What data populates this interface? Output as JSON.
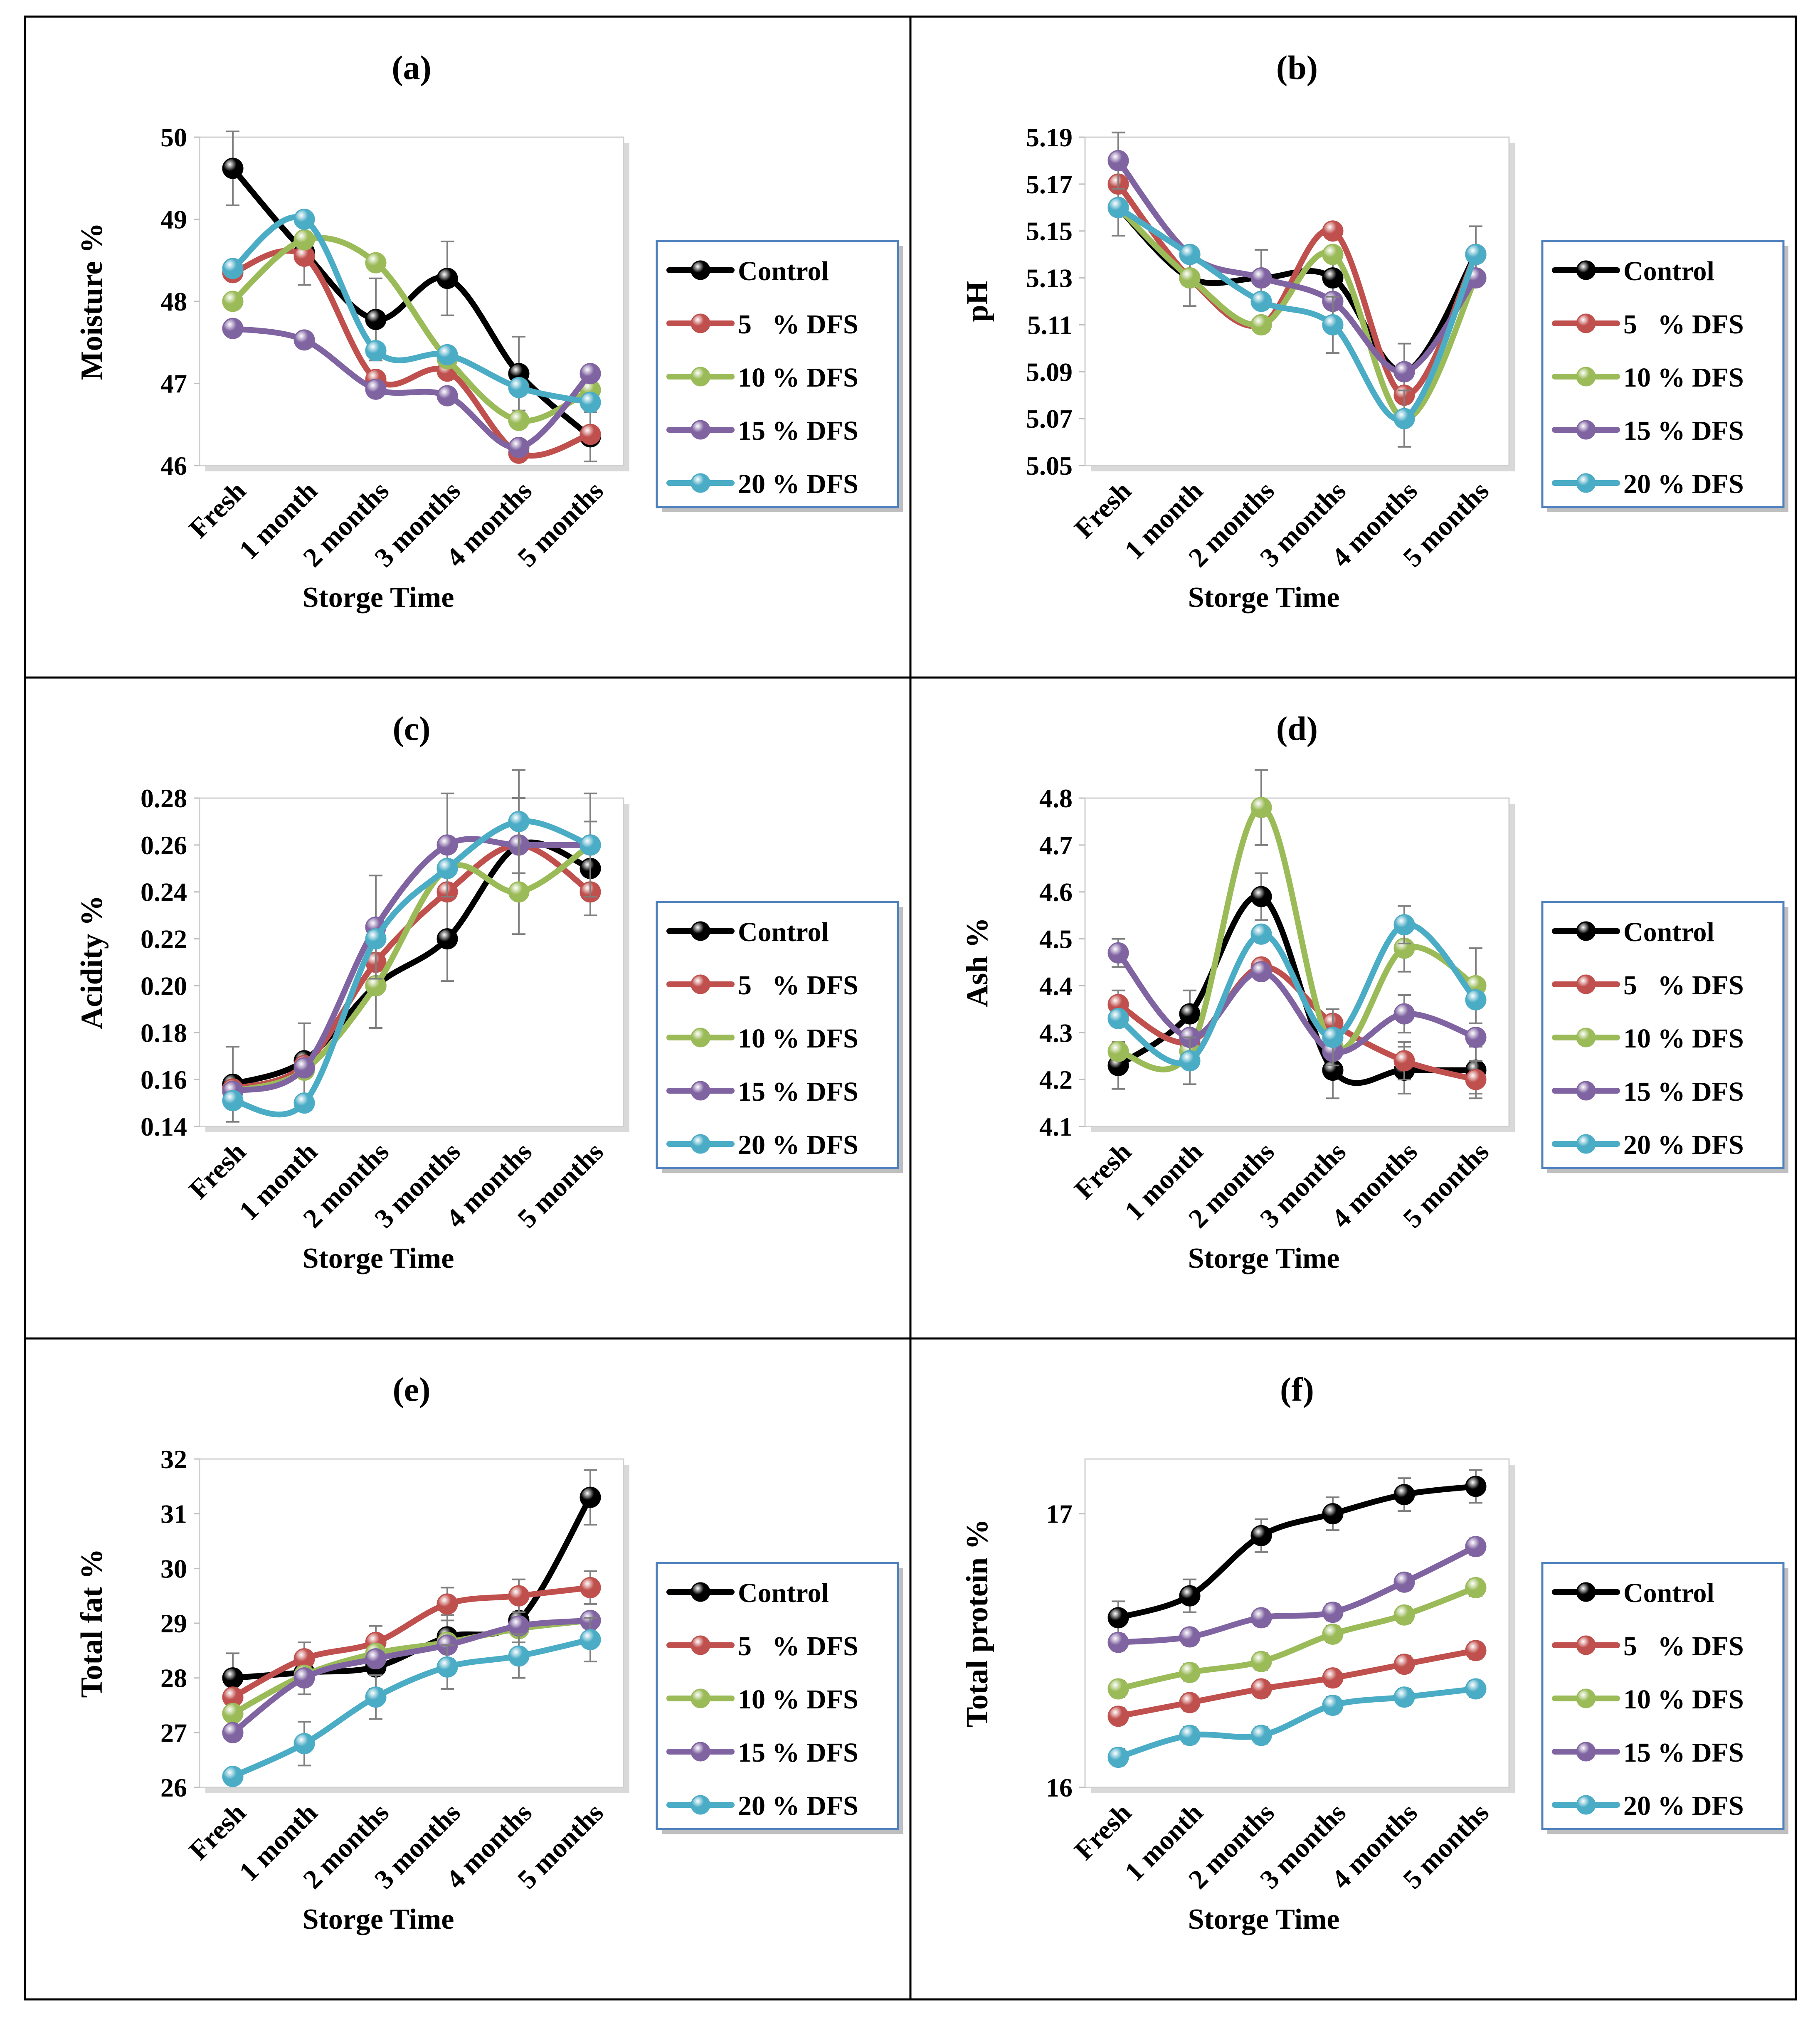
{
  "figure": {
    "categories": [
      "Fresh",
      "1 month",
      "2 months",
      "3 months",
      "4 months",
      "5 months"
    ],
    "xlabel": "Storge Time",
    "legend": [
      "Control",
      "5   % DFS",
      "10 % DFS",
      "15 % DFS",
      "20 % DFS"
    ],
    "series_colors": [
      "#000000",
      "#c0504d",
      "#9bbb59",
      "#8064a2",
      "#4bacc6"
    ]
  },
  "chart_data": [
    {
      "type": "line",
      "title": "(a)",
      "xlabel": "Storge Time",
      "ylabel": "Moisture %",
      "categories": [
        "Fresh",
        "1 month",
        "2 months",
        "3 months",
        "4 months",
        "5 months"
      ],
      "ylim": [
        46,
        50
      ],
      "yticks": [
        "46",
        "47",
        "48",
        "49",
        "50"
      ],
      "grid": false,
      "legend_position": "right",
      "series": [
        {
          "name": "Control",
          "color": "#000000",
          "values": [
            49.62,
            48.6,
            47.78,
            48.28,
            47.12,
            46.35
          ],
          "err": [
            0.45,
            0.4,
            0.5,
            0.45,
            0.45,
            0.3
          ]
        },
        {
          "name": "5   % DFS",
          "color": "#c0504d",
          "values": [
            48.35,
            48.55,
            47.05,
            47.15,
            46.15,
            46.38
          ],
          "err": [
            0,
            0,
            0,
            0,
            0,
            0
          ]
        },
        {
          "name": "10 % DFS",
          "color": "#9bbb59",
          "values": [
            48.0,
            48.75,
            48.47,
            47.3,
            46.55,
            46.92
          ],
          "err": [
            0,
            0,
            0,
            0,
            0,
            0
          ]
        },
        {
          "name": "15 % DFS",
          "color": "#8064a2",
          "values": [
            47.67,
            47.53,
            46.93,
            46.85,
            46.22,
            47.12
          ],
          "err": [
            0,
            0,
            0,
            0,
            0,
            0
          ]
        },
        {
          "name": "20 % DFS",
          "color": "#4bacc6",
          "values": [
            48.4,
            49.0,
            47.4,
            47.35,
            46.95,
            46.77
          ],
          "err": [
            0,
            0,
            0,
            0,
            0,
            0
          ]
        }
      ]
    },
    {
      "type": "line",
      "title": "(b)",
      "xlabel": "Storge Time",
      "ylabel": "pH",
      "categories": [
        "Fresh",
        "1 month",
        "2 months",
        "3 months",
        "4 months",
        "5 months"
      ],
      "ylim": [
        5.05,
        5.19
      ],
      "yticks": [
        "5.05",
        "5.07",
        "5.09",
        "5.11",
        "5.13",
        "5.15",
        "5.17",
        "5.19"
      ],
      "grid": false,
      "legend_position": "right",
      "series": [
        {
          "name": "Control",
          "color": "#000000",
          "values": [
            5.16,
            5.13,
            5.13,
            5.13,
            5.09,
            5.14
          ],
          "err": [
            0.012,
            0.012,
            0.012,
            0.012,
            0.012,
            0.012
          ]
        },
        {
          "name": "5   % DFS",
          "color": "#c0504d",
          "values": [
            5.17,
            5.13,
            5.11,
            5.15,
            5.08,
            5.14
          ],
          "err": [
            0,
            0,
            0,
            0,
            0,
            0
          ]
        },
        {
          "name": "10 % DFS",
          "color": "#9bbb59",
          "values": [
            5.16,
            5.13,
            5.11,
            5.14,
            5.07,
            5.13
          ],
          "err": [
            0,
            0,
            0,
            0,
            0,
            0
          ]
        },
        {
          "name": "15 % DFS",
          "color": "#8064a2",
          "values": [
            5.18,
            5.14,
            5.13,
            5.12,
            5.09,
            5.13
          ],
          "err": [
            0.012,
            0,
            0.012,
            0,
            0,
            0
          ]
        },
        {
          "name": "20 % DFS",
          "color": "#4bacc6",
          "values": [
            5.16,
            5.14,
            5.12,
            5.11,
            5.07,
            5.14
          ],
          "err": [
            0,
            0,
            0,
            0.012,
            0.012,
            0
          ]
        }
      ]
    },
    {
      "type": "line",
      "title": "(c)",
      "xlabel": "Storge Time",
      "ylabel": "Acidity %",
      "categories": [
        "Fresh",
        "1 month",
        "2 months",
        "3 months",
        "4 months",
        "5 months"
      ],
      "ylim": [
        0.14,
        0.28
      ],
      "yticks": [
        "0.14",
        "0.16",
        "0.18",
        "0.20",
        "0.22",
        "0.24",
        "0.26",
        "0.28"
      ],
      "grid": false,
      "legend_position": "right",
      "series": [
        {
          "name": "Control",
          "color": "#000000",
          "values": [
            0.158,
            0.168,
            0.2,
            0.22,
            0.26,
            0.25
          ],
          "err": [
            0.016,
            0.016,
            0.018,
            0.018,
            0.02,
            0.02
          ]
        },
        {
          "name": "5   % DFS",
          "color": "#c0504d",
          "values": [
            0.156,
            0.166,
            0.21,
            0.24,
            0.26,
            0.24
          ],
          "err": [
            0,
            0,
            0,
            0,
            0,
            0
          ]
        },
        {
          "name": "10 % DFS",
          "color": "#9bbb59",
          "values": [
            0.155,
            0.164,
            0.2,
            0.25,
            0.24,
            0.26
          ],
          "err": [
            0,
            0,
            0,
            0,
            0.018,
            0
          ]
        },
        {
          "name": "15 % DFS",
          "color": "#8064a2",
          "values": [
            0.155,
            0.165,
            0.225,
            0.26,
            0.26,
            0.26
          ],
          "err": [
            0,
            0,
            0.022,
            0.022,
            0,
            0
          ]
        },
        {
          "name": "20 % DFS",
          "color": "#4bacc6",
          "values": [
            0.151,
            0.15,
            0.22,
            0.25,
            0.27,
            0.26
          ],
          "err": [
            0,
            0,
            0,
            0,
            0.022,
            0.022
          ]
        }
      ]
    },
    {
      "type": "line",
      "title": "(d)",
      "xlabel": "Storge Time",
      "ylabel": "Ash %",
      "categories": [
        "Fresh",
        "1 month",
        "2 months",
        "3 months",
        "4 months",
        "5 months"
      ],
      "ylim": [
        4.1,
        4.8
      ],
      "yticks": [
        "4.1",
        "4.2",
        "4.3",
        "4.4",
        "4.5",
        "4.6",
        "4.7",
        "4.8"
      ],
      "grid": false,
      "legend_position": "right",
      "series": [
        {
          "name": "Control",
          "color": "#000000",
          "values": [
            4.23,
            4.34,
            4.59,
            4.22,
            4.22,
            4.22
          ],
          "err": [
            0.05,
            0.05,
            0.05,
            0.06,
            0.05,
            0.05
          ]
        },
        {
          "name": "5   % DFS",
          "color": "#c0504d",
          "values": [
            4.36,
            4.28,
            4.44,
            4.32,
            4.24,
            4.2
          ],
          "err": [
            0.03,
            0,
            0,
            0.03,
            0.04,
            0.04
          ]
        },
        {
          "name": "10 % DFS",
          "color": "#9bbb59",
          "values": [
            4.26,
            4.26,
            4.78,
            4.27,
            4.48,
            4.4
          ],
          "err": [
            0,
            0,
            0.08,
            0,
            0.05,
            0.08
          ]
        },
        {
          "name": "15 % DFS",
          "color": "#8064a2",
          "values": [
            4.47,
            4.29,
            4.43,
            4.26,
            4.34,
            4.29
          ],
          "err": [
            0.03,
            0,
            0,
            0,
            0.04,
            0
          ]
        },
        {
          "name": "20 % DFS",
          "color": "#4bacc6",
          "values": [
            4.33,
            4.24,
            4.51,
            4.29,
            4.53,
            4.37
          ],
          "err": [
            0,
            0.05,
            0,
            0.06,
            0.04,
            0
          ]
        }
      ]
    },
    {
      "type": "line",
      "title": "(e)",
      "xlabel": "Storge Time",
      "ylabel": "Total fat %",
      "categories": [
        "Fresh",
        "1 month",
        "2 months",
        "3 months",
        "4 months",
        "5 months"
      ],
      "ylim": [
        26,
        32
      ],
      "yticks": [
        "26",
        "27",
        "28",
        "29",
        "30",
        "31",
        "32"
      ],
      "grid": false,
      "legend_position": "right",
      "series": [
        {
          "name": "Control",
          "color": "#000000",
          "values": [
            28.0,
            28.1,
            28.2,
            28.75,
            29.05,
            31.3
          ],
          "err": [
            0.45,
            0.4,
            0.4,
            0.4,
            0.4,
            0.5
          ]
        },
        {
          "name": "5   % DFS",
          "color": "#c0504d",
          "values": [
            27.65,
            28.35,
            28.65,
            29.35,
            29.5,
            29.65
          ],
          "err": [
            0,
            0.3,
            0.3,
            0.3,
            0.3,
            0.3
          ]
        },
        {
          "name": "10 % DFS",
          "color": "#9bbb59",
          "values": [
            27.35,
            28.05,
            28.45,
            28.65,
            28.9,
            29.05
          ],
          "err": [
            0,
            0,
            0,
            0,
            0,
            0
          ]
        },
        {
          "name": "15 % DFS",
          "color": "#8064a2",
          "values": [
            27.0,
            28.0,
            28.35,
            28.6,
            28.95,
            29.05
          ],
          "err": [
            0,
            0,
            0,
            0,
            0,
            0
          ]
        },
        {
          "name": "20 % DFS",
          "color": "#4bacc6",
          "values": [
            26.2,
            26.8,
            27.65,
            28.2,
            28.4,
            28.7
          ],
          "err": [
            0,
            0.4,
            0.4,
            0.4,
            0.4,
            0.4
          ]
        }
      ]
    },
    {
      "type": "line",
      "title": "(f)",
      "xlabel": "Storge Time",
      "ylabel": "Total protein %",
      "categories": [
        "Fresh",
        "1 month",
        "2 months",
        "3 months",
        "4 months",
        "5 months"
      ],
      "ylim": [
        16,
        17.2
      ],
      "yticks": [
        "16",
        "17"
      ],
      "grid": false,
      "legend_position": "right",
      "series": [
        {
          "name": "Control",
          "color": "#000000",
          "values": [
            16.62,
            16.7,
            16.92,
            17.0,
            17.07,
            17.1
          ],
          "err": [
            0.06,
            0.06,
            0.06,
            0.06,
            0.06,
            0.06
          ]
        },
        {
          "name": "5   % DFS",
          "color": "#c0504d",
          "values": [
            16.26,
            16.31,
            16.36,
            16.4,
            16.45,
            16.5
          ],
          "err": [
            0.03,
            0.03,
            0.03,
            0.03,
            0.03,
            0.03
          ]
        },
        {
          "name": "10 % DFS",
          "color": "#9bbb59",
          "values": [
            16.36,
            16.42,
            16.46,
            16.56,
            16.63,
            16.73
          ],
          "err": [
            0.03,
            0.03,
            0.03,
            0.03,
            0.03,
            0.03
          ]
        },
        {
          "name": "15 % DFS",
          "color": "#8064a2",
          "values": [
            16.53,
            16.55,
            16.62,
            16.64,
            16.75,
            16.88
          ],
          "err": [
            0.03,
            0.03,
            0.03,
            0.03,
            0.03,
            0.03
          ]
        },
        {
          "name": "20 % DFS",
          "color": "#4bacc6",
          "values": [
            16.11,
            16.19,
            16.19,
            16.3,
            16.33,
            16.36
          ],
          "err": [
            0.03,
            0.03,
            0.03,
            0.03,
            0.03,
            0.03
          ]
        }
      ]
    }
  ]
}
